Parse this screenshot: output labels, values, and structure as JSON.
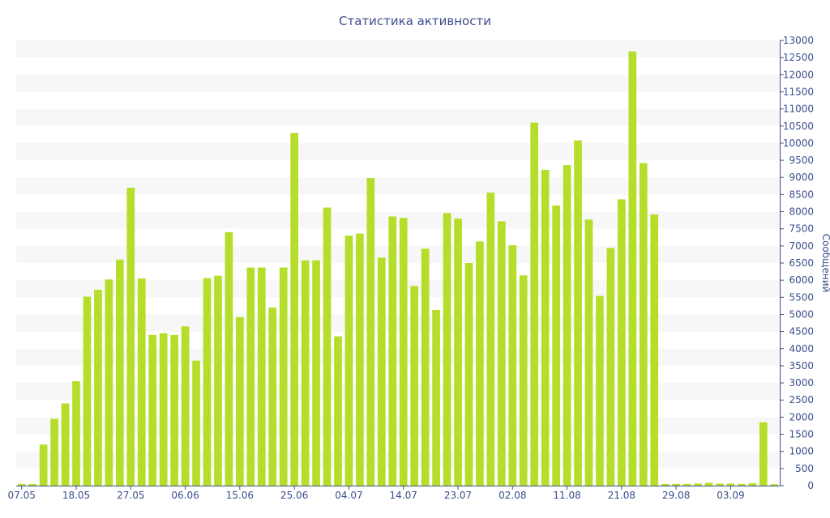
{
  "chart_data": {
    "type": "bar",
    "title": "Статистика активности",
    "ylabel": "Сообщений",
    "ylim": [
      0,
      13000
    ],
    "y_tick_step": 500,
    "y_axis_side": "right",
    "grid": "alternating horizontal bands",
    "colors": {
      "bar": "#b5de2b",
      "band": "#f7f7f7",
      "text": "#3b4e8c"
    },
    "x_tick_labels": [
      {
        "label": "07.05",
        "index": 0
      },
      {
        "label": "18.05",
        "index": 5
      },
      {
        "label": "27.05",
        "index": 10
      },
      {
        "label": "06.06",
        "index": 15
      },
      {
        "label": "15.06",
        "index": 20
      },
      {
        "label": "25.06",
        "index": 25
      },
      {
        "label": "04.07",
        "index": 30
      },
      {
        "label": "14.07",
        "index": 35
      },
      {
        "label": "23.07",
        "index": 40
      },
      {
        "label": "02.08",
        "index": 45
      },
      {
        "label": "11.08",
        "index": 50
      },
      {
        "label": "21.08",
        "index": 55
      },
      {
        "label": "29.08",
        "index": 60
      },
      {
        "label": "03.09",
        "index": 65
      }
    ],
    "values": [
      50,
      50,
      1200,
      1950,
      2400,
      3050,
      5520,
      5720,
      6020,
      6600,
      8700,
      6050,
      4400,
      4450,
      4400,
      4650,
      3650,
      6060,
      6130,
      7400,
      4920,
      6370,
      6370,
      5200,
      6370,
      10300,
      6580,
      6580,
      8120,
      4360,
      7300,
      7360,
      8980,
      6660,
      7860,
      7820,
      5830,
      6920,
      5130,
      7960,
      7800,
      6500,
      7130,
      8560,
      7720,
      7020,
      6140,
      10600,
      9220,
      8180,
      9360,
      10080,
      7770,
      5540,
      6940,
      8360,
      12680,
      9420,
      7920,
      50,
      50,
      50,
      60,
      80,
      60,
      60,
      50,
      70,
      1850,
      40
    ]
  }
}
